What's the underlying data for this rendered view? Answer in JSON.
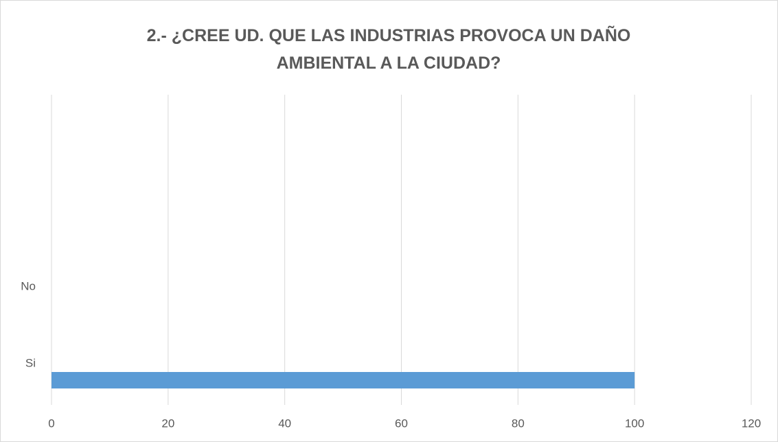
{
  "chart_data": {
    "type": "bar",
    "orientation": "horizontal",
    "title": "2.- ¿CREE UD. QUE LAS INDUSTRIAS PROVOCA UN DAÑO AMBIENTAL A LA CIUDAD?",
    "categories": [
      "Si",
      "No"
    ],
    "values": [
      100,
      0
    ],
    "color": "#5b9bd5",
    "xlim": [
      0,
      120
    ],
    "xticks": [
      0,
      20,
      40,
      60,
      80,
      100,
      120
    ],
    "grid": true
  }
}
